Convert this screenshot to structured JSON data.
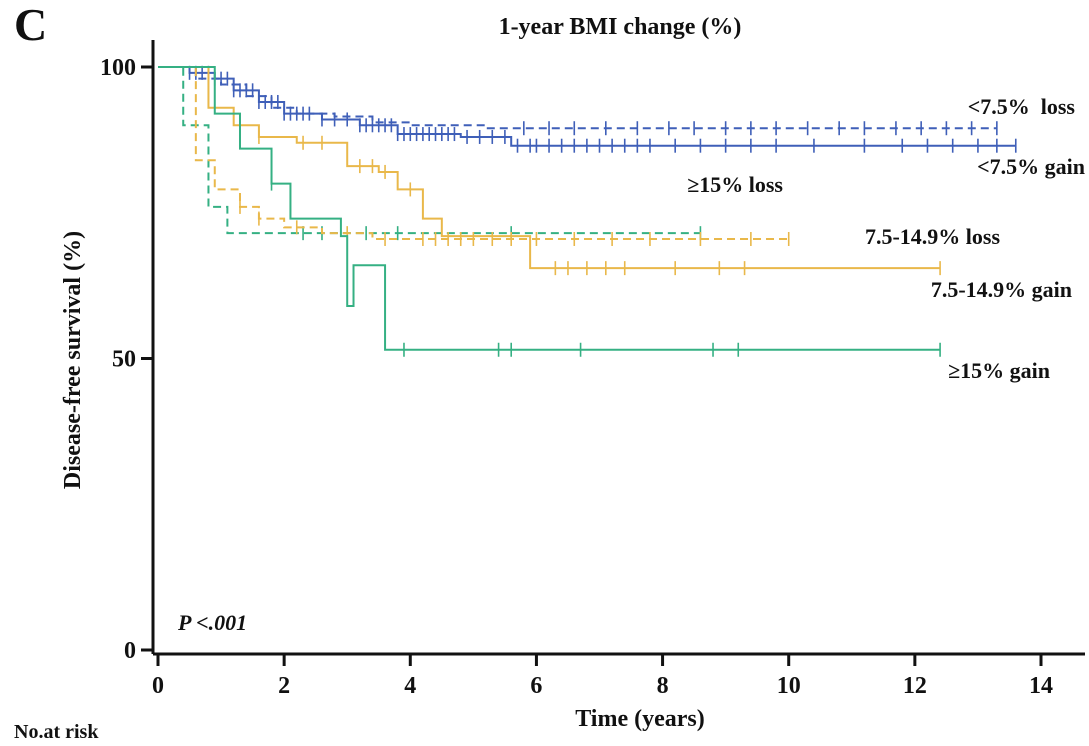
{
  "panel_label": "C",
  "footer": {
    "risk_label": "No.at risk"
  },
  "chart_data": {
    "type": "line",
    "subtype": "kaplan-meier",
    "title": "1-year BMI change (%)",
    "xlabel": "Time (years)",
    "ylabel": "Disease-free survival (%)",
    "xlim": [
      0,
      14
    ],
    "ylim": [
      0,
      100
    ],
    "x_ticks": [
      0,
      2,
      4,
      6,
      8,
      10,
      12,
      14
    ],
    "y_ticks": [
      0,
      50,
      100
    ],
    "grid": false,
    "legend": "inline labels at right end of each curve",
    "annotation": "P <.001",
    "colors": {
      "blue": "#3f5fb8",
      "orange": "#e9b84a",
      "green": "#35b083",
      "axis": "#111111"
    },
    "series": [
      {
        "name": "<7.5%  loss",
        "color": "#3f5fb8",
        "dashed": true,
        "steps": [
          [
            0,
            100
          ],
          [
            0.6,
            98
          ],
          [
            1.0,
            97
          ],
          [
            1.4,
            95
          ],
          [
            1.8,
            93
          ],
          [
            2.2,
            92
          ],
          [
            2.8,
            91.5
          ],
          [
            3.4,
            90.5
          ],
          [
            4.0,
            90
          ],
          [
            5.2,
            89.5
          ]
        ],
        "end": 13.3,
        "censor": [
          5.8,
          6.2,
          6.6,
          7.1,
          7.6,
          8.1,
          8.5,
          9.0,
          9.4,
          9.8,
          10.3,
          10.8,
          11.2,
          11.7,
          12.1,
          12.5,
          12.9,
          13.3
        ]
      },
      {
        "name": "<7.5% gain",
        "color": "#3f5fb8",
        "dashed": false,
        "steps": [
          [
            0,
            100
          ],
          [
            0.5,
            99
          ],
          [
            0.9,
            98
          ],
          [
            1.2,
            96
          ],
          [
            1.6,
            94
          ],
          [
            2.0,
            92
          ],
          [
            2.6,
            91
          ],
          [
            3.2,
            90
          ],
          [
            3.8,
            88.5
          ],
          [
            4.8,
            88
          ],
          [
            5.6,
            86.5
          ]
        ],
        "end": 13.6,
        "censor": [
          0.5,
          0.6,
          0.7,
          0.8,
          0.9,
          1.0,
          1.1,
          1.2,
          1.3,
          1.4,
          1.5,
          1.6,
          1.7,
          1.8,
          1.9,
          2.0,
          2.1,
          2.2,
          2.3,
          2.4,
          2.6,
          2.8,
          3.0,
          3.2,
          3.3,
          3.4,
          3.5,
          3.6,
          3.7,
          3.8,
          3.9,
          4.0,
          4.1,
          4.2,
          4.3,
          4.4,
          4.5,
          4.6,
          4.7,
          4.9,
          5.1,
          5.3,
          5.5,
          5.7,
          5.9,
          6.0,
          6.2,
          6.4,
          6.6,
          6.8,
          7.0,
          7.2,
          7.4,
          7.6,
          7.8,
          8.2,
          8.6,
          9.0,
          9.4,
          9.8,
          10.4,
          11.2,
          11.8,
          12.2,
          12.6,
          13.0,
          13.3,
          13.6
        ]
      },
      {
        "name": "≥15% loss",
        "color": "#35b083",
        "dashed": true,
        "steps": [
          [
            0,
            100
          ],
          [
            0.4,
            90
          ],
          [
            0.8,
            76
          ],
          [
            1.1,
            71.5
          ]
        ],
        "end": 8.6,
        "censor": [
          2.3,
          2.6,
          3.3,
          3.8,
          5.6,
          8.6
        ]
      },
      {
        "name": "7.5-14.9% loss",
        "color": "#e9b84a",
        "dashed": true,
        "steps": [
          [
            0,
            100
          ],
          [
            0.6,
            84
          ],
          [
            0.9,
            79
          ],
          [
            1.3,
            76
          ],
          [
            1.6,
            74
          ],
          [
            2.0,
            72.5
          ],
          [
            2.6,
            71.5
          ],
          [
            3.4,
            70.5
          ]
        ],
        "end": 10.0,
        "censor": [
          1.3,
          1.6,
          2.2,
          3.0,
          3.6,
          4.2,
          4.4,
          4.6,
          4.8,
          5.0,
          5.3,
          5.6,
          6.0,
          6.6,
          7.2,
          7.8,
          8.6,
          9.4,
          10.0
        ]
      },
      {
        "name": "7.5-14.9% gain",
        "color": "#e9b84a",
        "dashed": false,
        "steps": [
          [
            0,
            100
          ],
          [
            0.8,
            93
          ],
          [
            1.2,
            90
          ],
          [
            1.6,
            88
          ],
          [
            2.2,
            87
          ],
          [
            3.0,
            83
          ],
          [
            3.5,
            82
          ],
          [
            3.8,
            79
          ],
          [
            4.2,
            74
          ],
          [
            4.5,
            71
          ],
          [
            5.9,
            65.5
          ]
        ],
        "end": 12.4,
        "censor": [
          1.6,
          2.3,
          2.6,
          3.2,
          3.4,
          3.6,
          4.0,
          6.3,
          6.5,
          6.8,
          7.1,
          7.4,
          8.2,
          8.9,
          9.3,
          12.4
        ]
      },
      {
        "name": "≥15% gain",
        "color": "#35b083",
        "dashed": false,
        "steps": [
          [
            0,
            100
          ],
          [
            0.9,
            92
          ],
          [
            1.3,
            86
          ],
          [
            1.8,
            80
          ],
          [
            2.1,
            74
          ],
          [
            2.9,
            71
          ],
          [
            3.1,
            66
          ],
          [
            3.0,
            59
          ],
          [
            3.6,
            51.5
          ]
        ],
        "end": 12.4,
        "censor": [
          1.8,
          3.9,
          5.4,
          5.6,
          6.7,
          8.8,
          9.2,
          12.4
        ]
      }
    ]
  }
}
